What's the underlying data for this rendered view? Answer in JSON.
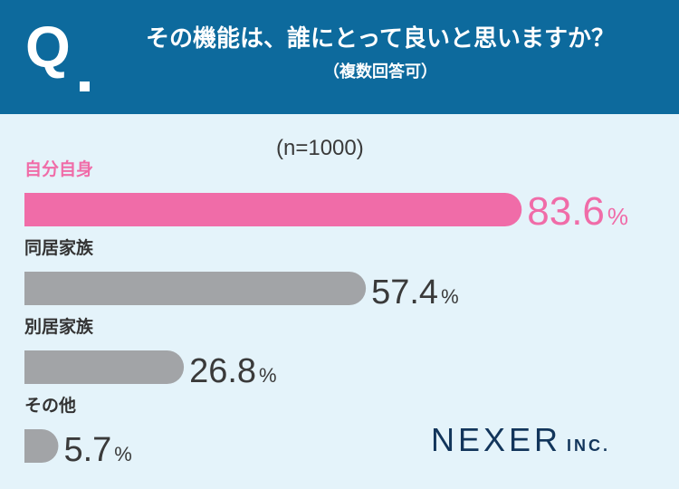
{
  "header": {
    "q_mark": "Q",
    "title": "その機能は、誰にとって良いと思いますか？",
    "subtitle": "（複数回答可）"
  },
  "n_label": "(n=1000)",
  "unit": "%",
  "logo": {
    "main": "NEXER",
    "suffix": "INC."
  },
  "colors": {
    "header_bg": "#0d6a9d",
    "background": "#e4f3fa",
    "highlight": "#f06ca8",
    "bar_gray": "#a2a4a7",
    "value_text": "#3a3a3a"
  },
  "chart_data": {
    "type": "bar",
    "orientation": "horizontal",
    "title": "その機能は、誰にとって良いと思いますか？",
    "subtitle": "（複数回答可）",
    "categories": [
      "自分自身",
      "同居家族",
      "別居家族",
      "その他"
    ],
    "values": [
      83.6,
      57.4,
      26.8,
      5.7
    ],
    "value_labels": [
      "83.6",
      "57.4",
      "26.8",
      "5.7"
    ],
    "unit": "%",
    "highlight_index": 0,
    "xlim": [
      0,
      100
    ],
    "grid": false,
    "legend": "none"
  }
}
